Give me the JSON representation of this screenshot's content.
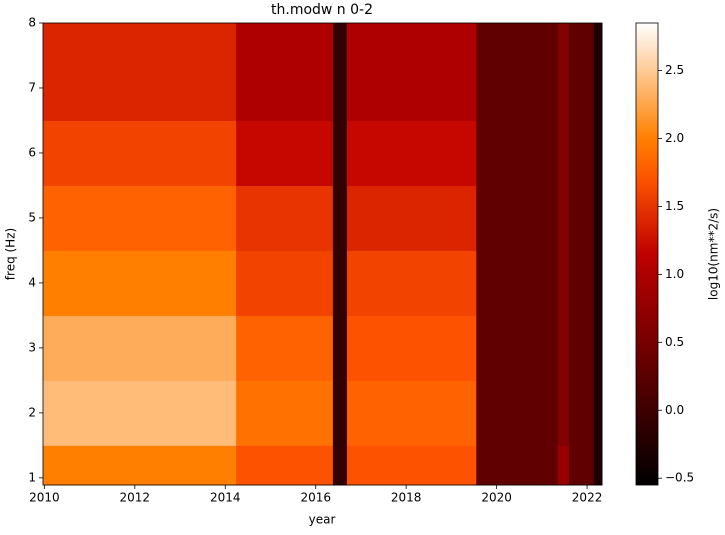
{
  "chart_data": {
    "type": "heatmap",
    "title": "th.modw n 0-2",
    "x_label": "year",
    "y_label": "freq (Hz)",
    "colorbar_label": "log10(nm**2/s)",
    "colormap": "gist_heat",
    "x_edges": [
      2009.97,
      2014.24,
      2016.38,
      2016.69,
      2019.55,
      2021.35,
      2021.6,
      2022.15,
      2022.33
    ],
    "y_edges": [
      0.89,
      1.5,
      2.5,
      3.5,
      4.5,
      5.5,
      6.5,
      8
    ],
    "values": [
      [
        2.0,
        1.7,
        -0.1,
        1.7,
        0.3,
        0.8,
        0.3,
        -0.3
      ],
      [
        2.4,
        1.9,
        -0.1,
        1.8,
        0.3,
        0.6,
        0.3,
        -0.3
      ],
      [
        2.3,
        1.8,
        -0.1,
        1.7,
        0.3,
        0.6,
        0.3,
        -0.3
      ],
      [
        2.0,
        1.6,
        -0.1,
        1.6,
        0.3,
        0.6,
        0.3,
        -0.3
      ],
      [
        1.8,
        1.5,
        -0.1,
        1.4,
        0.3,
        0.6,
        0.3,
        -0.3
      ],
      [
        1.6,
        1.2,
        -0.1,
        1.2,
        0.3,
        0.6,
        0.3,
        -0.3
      ],
      [
        1.4,
        1.0,
        -0.1,
        1.0,
        0.3,
        0.6,
        0.3,
        -0.3
      ]
    ],
    "xlim": [
      2009.97,
      2022.33
    ],
    "xticks": [
      2010,
      2012,
      2014,
      2016,
      2018,
      2020,
      2022
    ],
    "ylim": [
      0.89,
      8
    ],
    "yticks": [
      1,
      2,
      3,
      4,
      5,
      6,
      7,
      8
    ],
    "clim": [
      -0.55,
      2.85
    ],
    "cticks": [
      {
        "value": -0.5,
        "label": "−0.5"
      },
      {
        "value": 0,
        "label": "0.0"
      },
      0.5,
      {
        "value": 1,
        "label": "1.0"
      },
      1.5,
      {
        "value": 2,
        "label": "2.0"
      },
      2.5
    ]
  }
}
